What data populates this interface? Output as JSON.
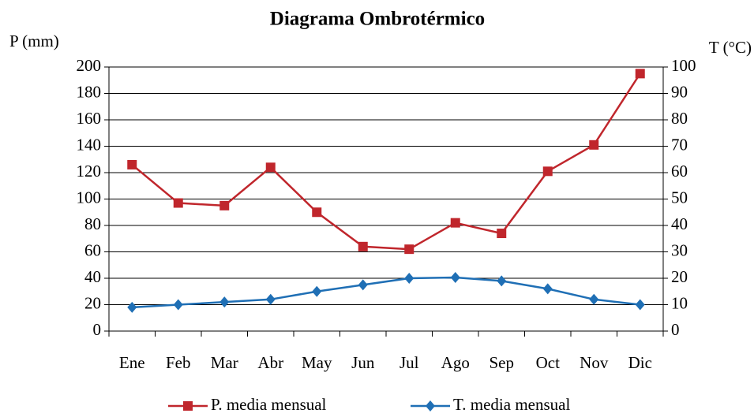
{
  "chart_data": {
    "type": "line",
    "title": "Diagrama Ombrotérmico",
    "y_label": "P (mm)",
    "y2_label": "T (°C)",
    "categories": [
      "Ene",
      "Feb",
      "Mar",
      "Abr",
      "May",
      "Jun",
      "Jul",
      "Ago",
      "Sep",
      "Oct",
      "Nov",
      "Dic"
    ],
    "series": [
      {
        "name": "P. media mensual",
        "color": "#c0262c",
        "marker": "square",
        "axis": "y",
        "values": [
          126,
          97,
          95,
          124,
          90,
          64,
          62,
          82,
          74,
          121,
          141,
          195
        ]
      },
      {
        "name": "T. media mensual",
        "color": "#1f6fb5",
        "marker": "diamond",
        "axis": "y2",
        "values": [
          9,
          10,
          11,
          12,
          15,
          17.5,
          20,
          20.3,
          19,
          16,
          12,
          10
        ]
      }
    ],
    "ylim": [
      0,
      200
    ],
    "yticks": [
      0,
      20,
      40,
      60,
      80,
      100,
      120,
      140,
      160,
      180,
      200
    ],
    "y2lim": [
      0,
      100
    ],
    "y2ticks": [
      0,
      10,
      20,
      30,
      40,
      50,
      60,
      70,
      80,
      90,
      100
    ],
    "grid": true,
    "legend": "bottom"
  }
}
